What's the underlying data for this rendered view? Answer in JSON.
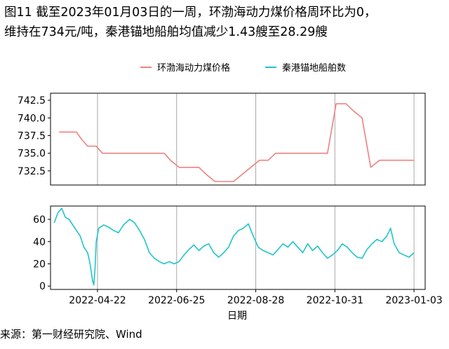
{
  "title_line1": "图11  截至2023年01月03日的一周，环渤海动力煤价格周环比为0，",
  "title_line2": "维持在734元/吨，秦港锚地船舶均值减少1.43艘至28.29艘",
  "source": "来源：第一财经研究院、Wind",
  "colors": {
    "series1": "#f08080",
    "series2": "#20c4c8",
    "grid": "#a8a8a8",
    "axis": "#000000"
  },
  "chart_data": {
    "type": "line",
    "xlabel": "日期",
    "x_ticks": [
      "2022-04-22",
      "2022-06-25",
      "2022-08-28",
      "2022-10-31",
      "2023-01-03"
    ],
    "x_range": [
      "2022-03-15",
      "2023-01-12"
    ],
    "legend": [
      "环渤海动力煤价格",
      "秦港锚地船舶数"
    ],
    "legend_position": "top",
    "panels": [
      {
        "name": "环渤海动力煤价格",
        "yticks": [
          "742.5",
          "740.0",
          "737.5",
          "735.0",
          "732.5"
        ],
        "ylim": [
          730.5,
          743.5
        ],
        "step": true,
        "points": [
          [
            "2022-03-22",
            738
          ],
          [
            "2022-04-05",
            738
          ],
          [
            "2022-04-09",
            737
          ],
          [
            "2022-04-14",
            736
          ],
          [
            "2022-04-21",
            736
          ],
          [
            "2022-04-26",
            735
          ],
          [
            "2022-06-15",
            735
          ],
          [
            "2022-06-20",
            734
          ],
          [
            "2022-06-27",
            733
          ],
          [
            "2022-07-13",
            733
          ],
          [
            "2022-07-19",
            732
          ],
          [
            "2022-07-26",
            731
          ],
          [
            "2022-08-10",
            731
          ],
          [
            "2022-08-17",
            732
          ],
          [
            "2022-08-24",
            733
          ],
          [
            "2022-08-31",
            734
          ],
          [
            "2022-09-07",
            734
          ],
          [
            "2022-09-13",
            735
          ],
          [
            "2022-10-25",
            735
          ],
          [
            "2022-11-01",
            742
          ],
          [
            "2022-11-09",
            742
          ],
          [
            "2022-11-15",
            741
          ],
          [
            "2022-11-22",
            740
          ],
          [
            "2022-11-29",
            733
          ],
          [
            "2022-12-06",
            734
          ],
          [
            "2023-01-03",
            734
          ]
        ]
      },
      {
        "name": "秦港锚地船舶数",
        "yticks": [
          "60",
          "40",
          "20",
          "0"
        ],
        "ylim": [
          -3,
          72
        ],
        "step": false,
        "points": [
          [
            "2022-03-18",
            57
          ],
          [
            "2022-03-21",
            66
          ],
          [
            "2022-03-24",
            70
          ],
          [
            "2022-03-27",
            62
          ],
          [
            "2022-03-30",
            60
          ],
          [
            "2022-04-02",
            55
          ],
          [
            "2022-04-05",
            50
          ],
          [
            "2022-04-08",
            45
          ],
          [
            "2022-04-11",
            35
          ],
          [
            "2022-04-14",
            30
          ],
          [
            "2022-04-16",
            20
          ],
          [
            "2022-04-18",
            5
          ],
          [
            "2022-04-19",
            1
          ],
          [
            "2022-04-20",
            15
          ],
          [
            "2022-04-21",
            40
          ],
          [
            "2022-04-23",
            52
          ],
          [
            "2022-04-27",
            55
          ],
          [
            "2022-05-01",
            53
          ],
          [
            "2022-05-05",
            50
          ],
          [
            "2022-05-09",
            48
          ],
          [
            "2022-05-13",
            55
          ],
          [
            "2022-05-18",
            60
          ],
          [
            "2022-05-22",
            57
          ],
          [
            "2022-05-26",
            50
          ],
          [
            "2022-05-30",
            42
          ],
          [
            "2022-06-03",
            30
          ],
          [
            "2022-06-07",
            25
          ],
          [
            "2022-06-11",
            22
          ],
          [
            "2022-06-15",
            20
          ],
          [
            "2022-06-19",
            22
          ],
          [
            "2022-06-23",
            20
          ],
          [
            "2022-06-27",
            22
          ],
          [
            "2022-07-01",
            28
          ],
          [
            "2022-07-05",
            33
          ],
          [
            "2022-07-09",
            37
          ],
          [
            "2022-07-13",
            32
          ],
          [
            "2022-07-17",
            36
          ],
          [
            "2022-07-21",
            38
          ],
          [
            "2022-07-25",
            30
          ],
          [
            "2022-07-29",
            26
          ],
          [
            "2022-08-02",
            30
          ],
          [
            "2022-08-06",
            35
          ],
          [
            "2022-08-10",
            45
          ],
          [
            "2022-08-14",
            50
          ],
          [
            "2022-08-18",
            52
          ],
          [
            "2022-08-22",
            56
          ],
          [
            "2022-08-26",
            45
          ],
          [
            "2022-08-30",
            35
          ],
          [
            "2022-09-03",
            32
          ],
          [
            "2022-09-07",
            30
          ],
          [
            "2022-09-11",
            28
          ],
          [
            "2022-09-15",
            33
          ],
          [
            "2022-09-19",
            38
          ],
          [
            "2022-09-23",
            35
          ],
          [
            "2022-09-27",
            40
          ],
          [
            "2022-10-01",
            35
          ],
          [
            "2022-10-05",
            30
          ],
          [
            "2022-10-09",
            38
          ],
          [
            "2022-10-13",
            32
          ],
          [
            "2022-10-17",
            36
          ],
          [
            "2022-10-21",
            30
          ],
          [
            "2022-10-25",
            25
          ],
          [
            "2022-10-29",
            28
          ],
          [
            "2022-11-02",
            32
          ],
          [
            "2022-11-06",
            38
          ],
          [
            "2022-11-10",
            35
          ],
          [
            "2022-11-14",
            30
          ],
          [
            "2022-11-18",
            26
          ],
          [
            "2022-11-22",
            25
          ],
          [
            "2022-11-26",
            33
          ],
          [
            "2022-11-30",
            38
          ],
          [
            "2022-12-04",
            42
          ],
          [
            "2022-12-08",
            40
          ],
          [
            "2022-12-12",
            45
          ],
          [
            "2022-12-15",
            52
          ],
          [
            "2022-12-18",
            38
          ],
          [
            "2022-12-22",
            30
          ],
          [
            "2022-12-26",
            28
          ],
          [
            "2022-12-30",
            26
          ],
          [
            "2023-01-03",
            30
          ]
        ]
      }
    ]
  }
}
